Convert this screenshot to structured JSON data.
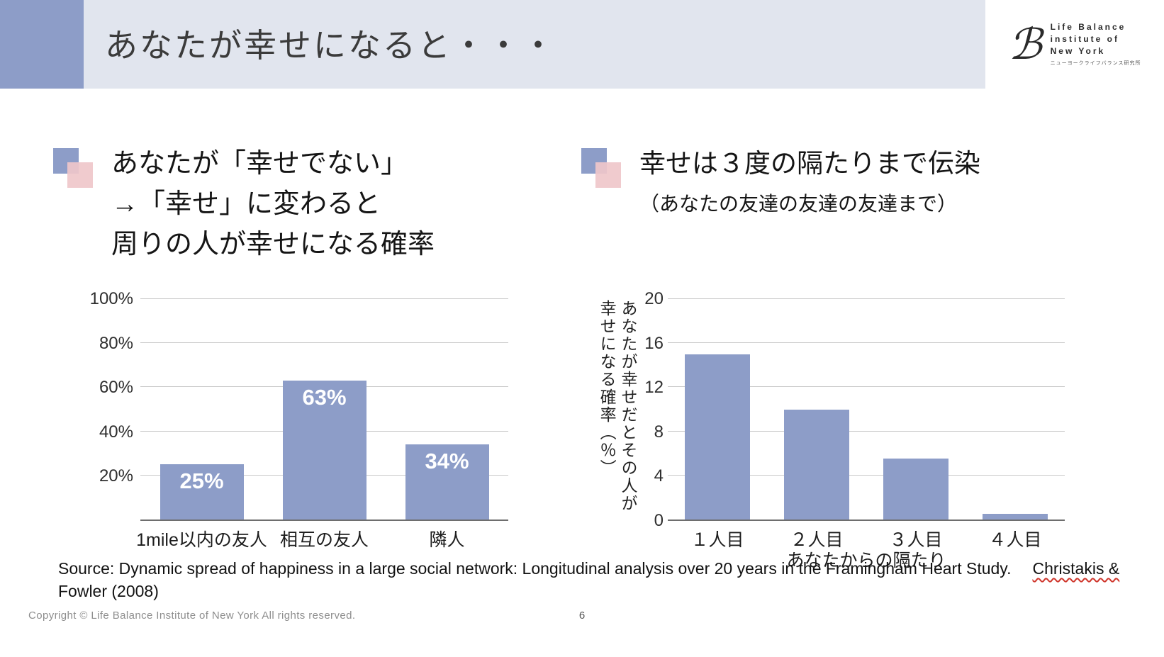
{
  "header": {
    "title": "あなたが幸せになると・・・",
    "logo": {
      "glyph": "ℬ",
      "line1": "Life Balance",
      "line2": "institute of",
      "line3": "New York",
      "subtext": "ニューヨークライフバランス研究所"
    }
  },
  "left_panel": {
    "heading_line1": "あなたが「幸せでない」",
    "heading_line2": "→「幸せ」に変わると",
    "heading_line3": "周りの人が幸せになる確率"
  },
  "right_panel": {
    "heading_line1": "幸せは３度の隔たりまで伝染",
    "heading_line2": "（あなたの友達の友達の友達まで）"
  },
  "chart_data": [
    {
      "type": "bar",
      "title": "あなたが「幸せでない」→「幸せ」に変わると周りの人が幸せになる確率",
      "categories": [
        "1mile以内の友人",
        "相互の友人",
        "隣人"
      ],
      "values": [
        25,
        63,
        34
      ],
      "bar_labels": [
        "25%",
        "63%",
        "34%"
      ],
      "ylim": [
        0,
        100
      ],
      "yticks": [
        20,
        40,
        60,
        80,
        100
      ],
      "ytick_labels": [
        "20%",
        "40%",
        "60%",
        "80%",
        "100%"
      ],
      "grid": true,
      "legend": "none",
      "bar_color": "#8d9dc8",
      "xlabel": "",
      "ylabel": ""
    },
    {
      "type": "bar",
      "title": "幸せは３度の隔たりまで伝染（あなたの友達の友達の友達まで）",
      "categories": [
        "１人目",
        "２人目",
        "３人目",
        "４人目"
      ],
      "values": [
        15,
        10,
        5.5,
        0.5
      ],
      "bar_labels": [],
      "ylim": [
        0,
        20
      ],
      "yticks": [
        0,
        4,
        8,
        12,
        16,
        20
      ],
      "ytick_labels": [
        "0",
        "4",
        "8",
        "12",
        "16",
        "20"
      ],
      "grid": true,
      "legend": "none",
      "bar_color": "#8d9dc8",
      "xlabel": "あなたからの隔たり",
      "ylabel": "あなたが幸せだとその人が幸せになる確率（％）"
    }
  ],
  "source": {
    "text_main": "Source: Dynamic spread of happiness in a large social network: Longitudinal analysis over 20 years in the Framingham Heart Study.",
    "citation_underlined": "Christakis &",
    "citation_rest": "Fowler (2008)"
  },
  "footer": {
    "copyright": "Copyright © Life Balance Institute of New York All rights reserved.",
    "page_number": "6"
  },
  "colors": {
    "accent_blue": "#8d9dc8",
    "accent_pink": "#efc7ca",
    "banner_bg": "#e1e5ee",
    "spellcheck_red": "#cf352b"
  }
}
